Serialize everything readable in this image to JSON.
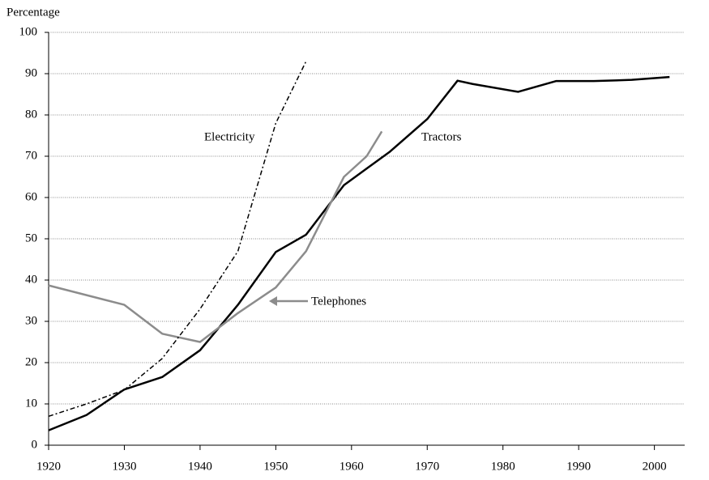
{
  "chart_data": {
    "type": "line",
    "y_axis_label": "Percentage",
    "xlim": [
      1920,
      2004
    ],
    "xticks": [
      1920,
      1930,
      1940,
      1950,
      1960,
      1970,
      1980,
      1990,
      2000
    ],
    "ylim": [
      0,
      100
    ],
    "yticks": [
      0,
      10,
      20,
      30,
      40,
      50,
      60,
      70,
      80,
      90,
      100
    ],
    "grid": true,
    "annotations": [
      "Electricity",
      "Tractors",
      "Telephones"
    ],
    "series": [
      {
        "name": "Tractors",
        "color": "#000000",
        "dash": "none",
        "x": [
          1920,
          1925,
          1930,
          1935,
          1940,
          1945,
          1950,
          1954,
          1959,
          1962,
          1965,
          1970,
          1974,
          1976,
          1982,
          1987,
          1992,
          1997,
          2002
        ],
        "values": [
          3.6,
          7.3,
          13.5,
          16.5,
          23,
          34,
          46.8,
          51,
          63,
          67,
          71,
          79,
          88.3,
          87.5,
          85.6,
          88.2,
          88.2,
          88.5,
          89.2
        ]
      },
      {
        "name": "Telephones",
        "color": "#8c8c8c",
        "dash": "none",
        "x": [
          1920,
          1930,
          1935,
          1940,
          1945,
          1950,
          1954,
          1959,
          1962,
          1964
        ],
        "values": [
          38.7,
          34,
          27,
          25,
          32,
          38.2,
          47,
          65,
          70,
          76
        ]
      },
      {
        "name": "Electricity",
        "color": "#000000",
        "dash": "6,3,2,3",
        "x": [
          1920,
          1925,
          1930,
          1935,
          1940,
          1945,
          1950,
          1954
        ],
        "values": [
          7,
          10,
          13.4,
          21,
          33,
          47,
          78,
          93
        ]
      }
    ]
  }
}
